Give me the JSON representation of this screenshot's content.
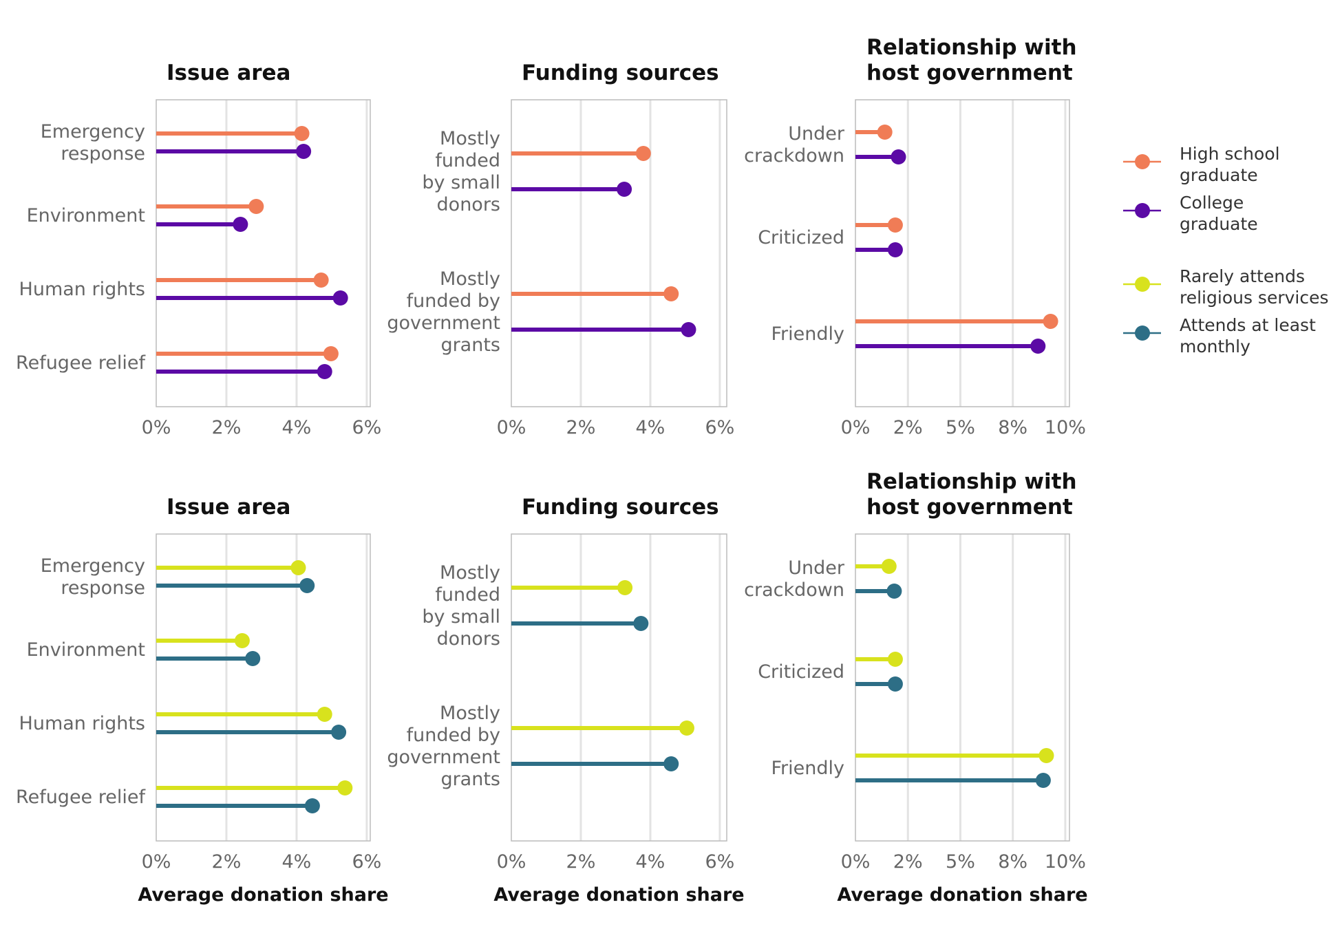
{
  "colors": {
    "high_school": "#f07c56",
    "college": "#5b0aa5",
    "rarely": "#d8e21d",
    "monthly": "#2d6e86"
  },
  "legend": [
    {
      "name": "High school graduate",
      "lines": [
        "High school",
        "graduate"
      ],
      "color": "#f07c56"
    },
    {
      "name": "College graduate",
      "lines": [
        "College",
        "graduate"
      ],
      "color": "#5b0aa5"
    },
    {
      "name": "Rarely attends religious services",
      "lines": [
        "Rarely attends",
        "religious services"
      ],
      "color": "#d8e21d"
    },
    {
      "name": "Attends at least monthly",
      "lines": [
        "Attends at least",
        "monthly"
      ],
      "color": "#2d6e86"
    }
  ],
  "chart_data": [
    {
      "type": "lollipop",
      "group": "education",
      "title": "Issue area",
      "xlabel": "",
      "xlim": [
        0,
        6.1
      ],
      "ticks": [
        0,
        2,
        4,
        6
      ],
      "tick_labels": [
        "0%",
        "2%",
        "4%",
        "6%"
      ],
      "categories": [
        "Emergency response",
        "Environment",
        "Human rights",
        "Refugee relief"
      ],
      "category_lines": [
        [
          "Emergency",
          "response"
        ],
        [
          "Environment"
        ],
        [
          "Human rights"
        ],
        [
          "Refugee relief"
        ]
      ],
      "series": [
        {
          "name": "High school graduate",
          "color": "#f07c56",
          "values": [
            4.15,
            2.85,
            4.7,
            4.98
          ]
        },
        {
          "name": "College graduate",
          "color": "#5b0aa5",
          "values": [
            4.2,
            2.4,
            5.25,
            4.8
          ]
        }
      ]
    },
    {
      "type": "lollipop",
      "group": "education",
      "title": "Funding sources",
      "xlabel": "",
      "xlim": [
        0,
        6.2
      ],
      "ticks": [
        0,
        2,
        4,
        6
      ],
      "tick_labels": [
        "0%",
        "2%",
        "4%",
        "6%"
      ],
      "categories": [
        "Mostly funded by small donors",
        "Mostly funded by government grants"
      ],
      "category_lines": [
        [
          "Mostly",
          "funded",
          "by small",
          "donors"
        ],
        [
          "Mostly",
          "funded by",
          "government",
          "grants"
        ]
      ],
      "series": [
        {
          "name": "High school graduate",
          "color": "#f07c56",
          "values": [
            3.8,
            4.6
          ]
        },
        {
          "name": "College graduate",
          "color": "#5b0aa5",
          "values": [
            3.25,
            5.1
          ]
        }
      ]
    },
    {
      "type": "lollipop",
      "group": "education",
      "title": "Relationship with host government",
      "xlabel": "",
      "title_lines": [
        "Relationship with",
        "host government"
      ],
      "xlim": [
        0,
        10.2
      ],
      "ticks": [
        0,
        2.5,
        5,
        7.5,
        10
      ],
      "tick_labels": [
        "0%",
        "2%",
        "5%",
        "8%",
        "10%"
      ],
      "categories": [
        "Under crackdown",
        "Criticized",
        "Friendly"
      ],
      "category_lines": [
        [
          "Under",
          "crackdown"
        ],
        [
          "Criticized"
        ],
        [
          "Friendly"
        ]
      ],
      "series": [
        {
          "name": "High school graduate",
          "color": "#f07c56",
          "values": [
            1.4,
            1.9,
            9.3
          ]
        },
        {
          "name": "College graduate",
          "color": "#5b0aa5",
          "values": [
            2.05,
            1.9,
            8.7
          ]
        }
      ]
    },
    {
      "type": "lollipop",
      "group": "religion",
      "title": "Issue area",
      "xlabel": "Average donation share",
      "xlim": [
        0,
        6.1
      ],
      "ticks": [
        0,
        2,
        4,
        6
      ],
      "tick_labels": [
        "0%",
        "2%",
        "4%",
        "6%"
      ],
      "categories": [
        "Emergency response",
        "Environment",
        "Human rights",
        "Refugee relief"
      ],
      "category_lines": [
        [
          "Emergency",
          "response"
        ],
        [
          "Environment"
        ],
        [
          "Human rights"
        ],
        [
          "Refugee relief"
        ]
      ],
      "series": [
        {
          "name": "Rarely attends religious services",
          "color": "#d8e21d",
          "values": [
            4.05,
            2.45,
            4.8,
            5.38
          ]
        },
        {
          "name": "Attends at least monthly",
          "color": "#2d6e86",
          "values": [
            4.3,
            2.75,
            5.2,
            4.45
          ]
        }
      ]
    },
    {
      "type": "lollipop",
      "group": "religion",
      "title": "Funding sources",
      "xlabel": "Average donation share",
      "xlim": [
        0,
        6.2
      ],
      "ticks": [
        0,
        2,
        4,
        6
      ],
      "tick_labels": [
        "0%",
        "2%",
        "4%",
        "6%"
      ],
      "categories": [
        "Mostly funded by small donors",
        "Mostly funded by government grants"
      ],
      "category_lines": [
        [
          "Mostly",
          "funded",
          "by small",
          "donors"
        ],
        [
          "Mostly",
          "funded by",
          "government",
          "grants"
        ]
      ],
      "series": [
        {
          "name": "Rarely attends religious services",
          "color": "#d8e21d",
          "values": [
            3.27,
            5.05
          ]
        },
        {
          "name": "Attends at least monthly",
          "color": "#2d6e86",
          "values": [
            3.73,
            4.6
          ]
        }
      ]
    },
    {
      "type": "lollipop",
      "group": "religion",
      "title": "Relationship with host government",
      "xlabel": "Average donation share",
      "title_lines": [
        "Relationship with",
        "host government"
      ],
      "xlim": [
        0,
        10.2
      ],
      "ticks": [
        0,
        2.5,
        5,
        7.5,
        10
      ],
      "tick_labels": [
        "0%",
        "2%",
        "5%",
        "8%",
        "10%"
      ],
      "categories": [
        "Under crackdown",
        "Criticized",
        "Friendly"
      ],
      "category_lines": [
        [
          "Under",
          "crackdown"
        ],
        [
          "Criticized"
        ],
        [
          "Friendly"
        ]
      ],
      "series": [
        {
          "name": "Rarely attends religious services",
          "color": "#d8e21d",
          "values": [
            1.6,
            1.9,
            9.1
          ]
        },
        {
          "name": "Attends at least monthly",
          "color": "#2d6e86",
          "values": [
            1.85,
            1.9,
            8.95
          ]
        }
      ]
    }
  ]
}
